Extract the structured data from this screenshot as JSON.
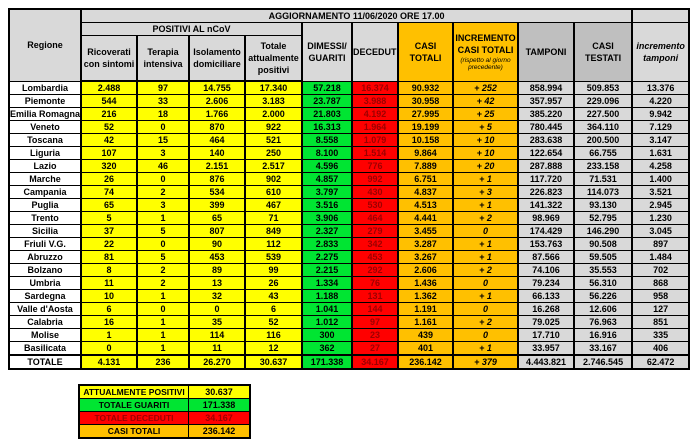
{
  "colors": {
    "yellow": "#FFFF00",
    "green": "#00E532",
    "red": "#FF0000",
    "red-text": "#9C0000",
    "orange": "#FFC000",
    "header-gray": "#D9D9D9",
    "dark-header-gray": "#BFBFBF",
    "cell-gray": "#D9D9D9"
  },
  "chart_data": {
    "type": "table",
    "title": "AGGIORNAMENTO 11/06/2020 ORE 17.00",
    "group_header": "POSITIVI AL nCoV",
    "columns": [
      "Regione",
      "Ricoverati con sintomi",
      "Terapia intensiva",
      "Isolamento domiciliare",
      "Totale attualmente positivi",
      "DIMESSI/ GUARITI",
      "DECEDUTI",
      "CASI TOTALI",
      "INCREMENTO CASI TOTALI",
      "TAMPONI",
      "CASI TESTATI",
      "incremento tamponi"
    ],
    "increment_note": "(rispetto al giorno precedente)",
    "rows": [
      [
        "Lombardia",
        "2.488",
        "97",
        "14.755",
        "17.340",
        "57.218",
        "16.374",
        "90.932",
        "+ 252",
        "858.994",
        "509.853",
        "13.376"
      ],
      [
        "Piemonte",
        "544",
        "33",
        "2.606",
        "3.183",
        "23.787",
        "3.988",
        "30.958",
        "+ 42",
        "357.957",
        "229.096",
        "4.220"
      ],
      [
        "Emilia Romagna",
        "216",
        "18",
        "1.766",
        "2.000",
        "21.803",
        "4.192",
        "27.995",
        "+ 25",
        "385.220",
        "227.500",
        "9.942"
      ],
      [
        "Veneto",
        "52",
        "0",
        "870",
        "922",
        "16.313",
        "1.964",
        "19.199",
        "+ 5",
        "780.445",
        "364.110",
        "7.129"
      ],
      [
        "Toscana",
        "42",
        "15",
        "464",
        "521",
        "8.558",
        "1.079",
        "10.158",
        "+ 10",
        "283.638",
        "200.500",
        "3.147"
      ],
      [
        "Liguria",
        "107",
        "3",
        "140",
        "250",
        "8.100",
        "1.514",
        "9.864",
        "+ 10",
        "122.654",
        "66.755",
        "1.631"
      ],
      [
        "Lazio",
        "320",
        "46",
        "2.151",
        "2.517",
        "4.596",
        "776",
        "7.889",
        "+ 20",
        "287.888",
        "233.158",
        "4.258"
      ],
      [
        "Marche",
        "26",
        "0",
        "876",
        "902",
        "4.857",
        "992",
        "6.751",
        "+ 1",
        "117.720",
        "71.531",
        "1.400"
      ],
      [
        "Campania",
        "74",
        "2",
        "534",
        "610",
        "3.797",
        "430",
        "4.837",
        "+ 3",
        "226.823",
        "114.073",
        "3.521"
      ],
      [
        "Puglia",
        "65",
        "3",
        "399",
        "467",
        "3.516",
        "530",
        "4.513",
        "+ 1",
        "141.322",
        "93.130",
        "2.945"
      ],
      [
        "Trento",
        "5",
        "1",
        "65",
        "71",
        "3.906",
        "464",
        "4.441",
        "+ 2",
        "98.969",
        "52.795",
        "1.230"
      ],
      [
        "Sicilia",
        "37",
        "5",
        "807",
        "849",
        "2.327",
        "279",
        "3.455",
        "0",
        "174.429",
        "146.290",
        "3.045"
      ],
      [
        "Friuli V.G.",
        "22",
        "0",
        "90",
        "112",
        "2.833",
        "342",
        "3.287",
        "+ 1",
        "153.763",
        "90.508",
        "897"
      ],
      [
        "Abruzzo",
        "81",
        "5",
        "453",
        "539",
        "2.275",
        "453",
        "3.267",
        "+ 1",
        "87.566",
        "59.505",
        "1.484"
      ],
      [
        "Bolzano",
        "8",
        "2",
        "89",
        "99",
        "2.215",
        "292",
        "2.606",
        "+ 2",
        "74.106",
        "35.553",
        "702"
      ],
      [
        "Umbria",
        "11",
        "2",
        "13",
        "26",
        "1.334",
        "76",
        "1.436",
        "0",
        "79.234",
        "56.310",
        "868"
      ],
      [
        "Sardegna",
        "10",
        "1",
        "32",
        "43",
        "1.188",
        "131",
        "1.362",
        "+ 1",
        "66.133",
        "56.226",
        "958"
      ],
      [
        "Valle d'Aosta",
        "6",
        "0",
        "0",
        "6",
        "1.041",
        "144",
        "1.191",
        "0",
        "16.268",
        "12.606",
        "127"
      ],
      [
        "Calabria",
        "16",
        "1",
        "35",
        "52",
        "1.012",
        "97",
        "1.161",
        "+ 2",
        "79.025",
        "76.963",
        "851"
      ],
      [
        "Molise",
        "1",
        "1",
        "114",
        "116",
        "300",
        "23",
        "439",
        "0",
        "17.710",
        "16.916",
        "335"
      ],
      [
        "Basilicata",
        "0",
        "1",
        "11",
        "12",
        "362",
        "27",
        "401",
        "+ 1",
        "33.957",
        "33.167",
        "406"
      ]
    ],
    "total_row": [
      "TOTALE",
      "4.131",
      "236",
      "26.270",
      "30.637",
      "171.338",
      "34.167",
      "236.142",
      "+ 379",
      "4.443.821",
      "2.746.545",
      "62.472"
    ],
    "summary": [
      {
        "label": "ATTUALMENTE POSITIVI",
        "value": "30.637",
        "color": "yellow"
      },
      {
        "label": "TOTALE GUARITI",
        "value": "171.338",
        "color": "green"
      },
      {
        "label": "TOTALE DECEDUTI",
        "value": "34.167",
        "color": "red"
      },
      {
        "label": "CASI TOTALI",
        "value": "236.142",
        "color": "orange"
      }
    ]
  }
}
